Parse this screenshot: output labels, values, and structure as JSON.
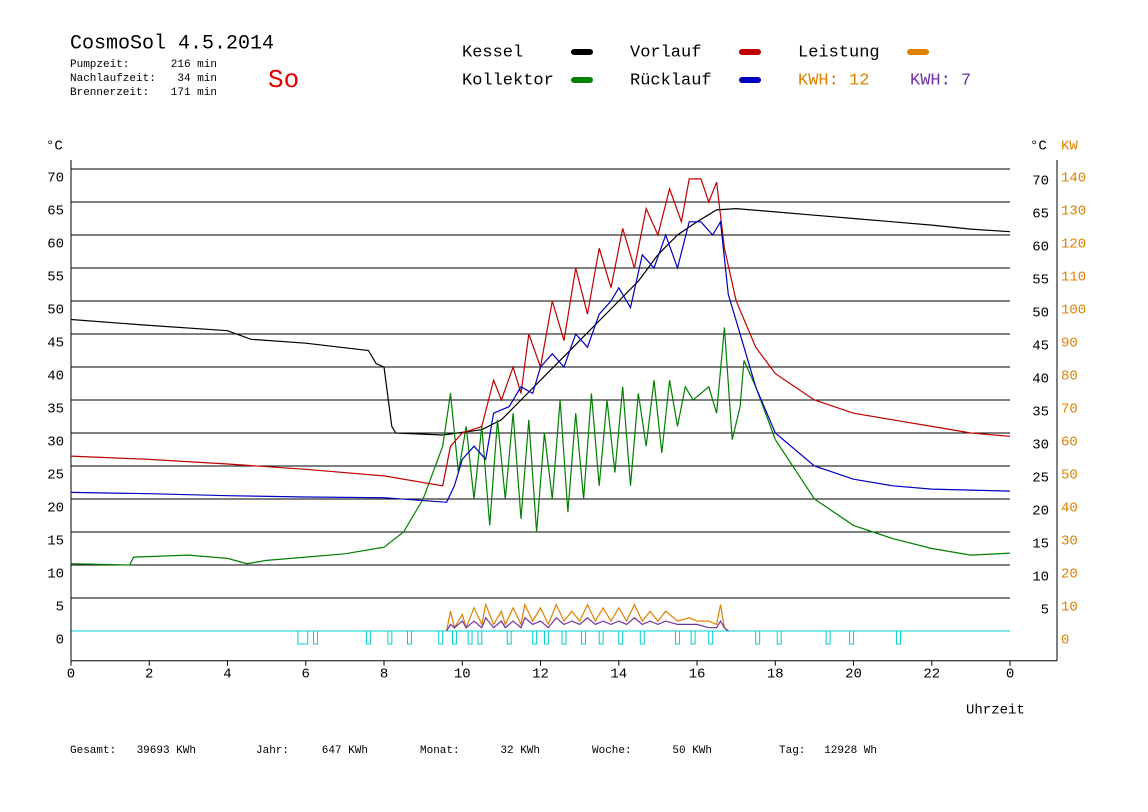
{
  "chart_data": {
    "type": "line",
    "title": "CosmoSol 4.5.2014",
    "weekday": "So",
    "stats": [
      {
        "label": "Pumpzeit:",
        "value": "216 min"
      },
      {
        "label": "Nachlaufzeit:",
        "value": "34 min"
      },
      {
        "label": "Brennerzeit:",
        "value": "171 min"
      }
    ],
    "footer": [
      {
        "label": "Gesamt:",
        "value": "39693 KWh"
      },
      {
        "label": "Jahr:",
        "value": "647 KWh"
      },
      {
        "label": "Monat:",
        "value": "32 KWh"
      },
      {
        "label": "Woche:",
        "value": "50 KWh"
      },
      {
        "label": "Tag:",
        "value": "12928 Wh"
      }
    ],
    "xlabel": "Uhrzeit",
    "ylabel": "°C",
    "y2label": "KW",
    "xlim": [
      0,
      25.2
    ],
    "xticks": [
      0,
      2,
      4,
      6,
      8,
      10,
      12,
      14,
      16,
      18,
      20,
      22,
      {
        "value": 24,
        "label": "0"
      }
    ],
    "ylim": [
      -4.5,
      72
    ],
    "yticks": [
      0,
      5,
      10,
      15,
      20,
      25,
      30,
      35,
      40,
      45,
      50,
      55,
      60,
      65,
      70
    ],
    "y2lim": [
      -9,
      144
    ],
    "y2ticks": [
      0,
      10,
      20,
      30,
      40,
      50,
      60,
      70,
      80,
      90,
      100,
      110,
      120,
      130,
      140
    ],
    "grid": true,
    "series": [
      {
        "name": "Kessel",
        "color": "#000000",
        "x": [
          0,
          2,
          4,
          4.6,
          6,
          7.6,
          7.8,
          8,
          8.2,
          8.3,
          9.5,
          10.5,
          11,
          11.5,
          12,
          12.5,
          13,
          13.5,
          14,
          14.5,
          15,
          15.5,
          16,
          16.5,
          17,
          18,
          19,
          20,
          21,
          22,
          23,
          24
        ],
        "values": [
          47.2,
          46.3,
          45.5,
          44.2,
          43.6,
          42.5,
          40.5,
          40,
          31,
          30,
          29.7,
          30.5,
          32,
          35,
          38,
          41,
          44,
          47,
          50,
          53,
          57,
          60,
          62,
          63.8,
          64,
          63.5,
          63,
          62.5,
          62,
          61.5,
          60.9,
          60.5
        ]
      },
      {
        "name": "Kollektor",
        "color": "#008000",
        "x": [
          0,
          1.5,
          1.6,
          3,
          4,
          4.5,
          5,
          6,
          7,
          8,
          8.5,
          9,
          9.5,
          9.7,
          9.9,
          10.1,
          10.3,
          10.5,
          10.7,
          10.9,
          11.1,
          11.3,
          11.5,
          11.7,
          11.9,
          12.1,
          12.3,
          12.5,
          12.7,
          12.9,
          13.1,
          13.3,
          13.5,
          13.7,
          13.9,
          14.1,
          14.3,
          14.5,
          14.7,
          14.9,
          15.1,
          15.3,
          15.5,
          15.7,
          15.9,
          16.1,
          16.3,
          16.5,
          16.7,
          16.9,
          17.1,
          17.2,
          17.5,
          18,
          19,
          20,
          21,
          22,
          23,
          24
        ],
        "values": [
          10.2,
          10,
          11.2,
          11.5,
          11,
          10.2,
          10.7,
          11.2,
          11.7,
          12.7,
          15,
          20,
          28,
          36,
          24,
          31,
          20,
          31,
          16,
          32,
          20,
          33,
          17,
          32,
          15,
          30,
          20,
          35,
          18,
          33,
          20,
          36,
          22,
          35,
          24,
          37,
          22,
          36,
          28,
          38,
          27,
          38,
          31,
          37,
          35,
          36,
          37,
          33,
          46,
          29,
          34,
          41,
          37,
          29,
          20,
          16,
          14,
          12.5,
          11.5,
          11.8
        ]
      },
      {
        "name": "Vorlauf",
        "color": "#c00000",
        "x": [
          0,
          2,
          4,
          6,
          8,
          9.5,
          9.7,
          10,
          10.5,
          10.8,
          11,
          11.3,
          11.5,
          11.7,
          12,
          12.3,
          12.6,
          12.9,
          13.2,
          13.5,
          13.8,
          14.1,
          14.4,
          14.7,
          15,
          15.3,
          15.6,
          15.8,
          16.1,
          16.3,
          16.5,
          16.7,
          17,
          17.5,
          18,
          19,
          20,
          21,
          22,
          23,
          24
        ],
        "values": [
          26.5,
          26,
          25.3,
          24.5,
          23.5,
          22,
          28,
          30,
          31,
          38,
          35,
          40,
          36,
          45,
          40,
          50,
          44,
          55,
          48,
          58,
          52,
          61,
          55,
          64,
          60,
          67,
          62,
          68.5,
          68.5,
          65,
          68,
          58,
          50,
          43,
          39,
          35,
          33,
          32,
          31,
          30,
          29.5
        ]
      },
      {
        "name": "Rücklauf",
        "color": "#0000c0",
        "x": [
          0,
          2,
          4,
          6,
          8,
          9.6,
          9.8,
          10,
          10.3,
          10.6,
          10.8,
          11.2,
          11.5,
          11.8,
          12,
          12.3,
          12.6,
          12.9,
          13.2,
          13.5,
          13.8,
          14,
          14.3,
          14.6,
          14.9,
          15.2,
          15.5,
          15.8,
          16.1,
          16.4,
          16.6,
          16.8,
          17,
          17.5,
          18,
          19,
          20,
          21,
          22,
          24
        ],
        "values": [
          21,
          20.8,
          20.5,
          20.3,
          20.2,
          19.5,
          22,
          26,
          28,
          26,
          33,
          34,
          37,
          36,
          40,
          42,
          40,
          45,
          43,
          48,
          50,
          52,
          49,
          57,
          55,
          60,
          55,
          62,
          62,
          60,
          62,
          51,
          47,
          37,
          30,
          25,
          23,
          22,
          21.5,
          21.2
        ]
      },
      {
        "name": "Leistung",
        "color": "#e08000",
        "axis": "y2",
        "total": "KWH: 12",
        "x": [
          9.6,
          9.7,
          9.8,
          10,
          10.1,
          10.3,
          10.5,
          10.6,
          10.8,
          11,
          11.1,
          11.3,
          11.5,
          11.6,
          11.8,
          12,
          12.2,
          12.4,
          12.6,
          12.8,
          13,
          13.2,
          13.4,
          13.6,
          13.8,
          14,
          14.2,
          14.4,
          14.6,
          14.8,
          15,
          15.2,
          15.5,
          15.8,
          16,
          16.3,
          16.5,
          16.6,
          16.7,
          16.8
        ],
        "values": [
          0,
          6,
          1,
          5,
          1,
          7,
          2,
          8,
          2,
          6,
          2,
          7,
          2,
          8,
          3,
          7,
          2,
          8,
          3,
          6,
          3,
          8,
          3,
          7,
          3,
          7,
          3,
          8,
          3,
          6,
          3,
          6,
          3,
          4,
          3,
          3,
          2,
          8,
          1,
          0
        ]
      },
      {
        "color": "#7030a0",
        "axis": "y2",
        "total": "KWH: 7",
        "x": [
          9.6,
          9.7,
          9.8,
          10,
          10.1,
          10.3,
          10.5,
          10.6,
          10.8,
          11,
          11.1,
          11.3,
          11.5,
          11.6,
          11.8,
          12,
          12.2,
          12.4,
          12.6,
          12.8,
          13,
          13.2,
          13.4,
          13.6,
          13.8,
          14,
          14.2,
          14.4,
          14.6,
          14.8,
          15,
          15.2,
          15.5,
          15.8,
          16,
          16.3,
          16.5,
          16.6,
          16.7,
          16.8
        ],
        "values": [
          0,
          2,
          1,
          3,
          1,
          3,
          1,
          4,
          1,
          3,
          1,
          3,
          1,
          4,
          2,
          3,
          1,
          4,
          2,
          3,
          2,
          4,
          2,
          3,
          2,
          3,
          2,
          4,
          2,
          3,
          2,
          3,
          2,
          2,
          2,
          1,
          1,
          3,
          1,
          0
        ]
      }
    ],
    "pump_color": "#00d0d0",
    "pump": [
      [
        5.8,
        6.05
      ],
      [
        6.2,
        6.3
      ],
      [
        7.55,
        7.65
      ],
      [
        8.1,
        8.2
      ],
      [
        8.6,
        8.7
      ],
      [
        9.4,
        9.5
      ],
      [
        9.75,
        9.85
      ],
      [
        10.15,
        10.25
      ],
      [
        10.4,
        10.5
      ],
      [
        11.15,
        11.25
      ],
      [
        11.8,
        11.9
      ],
      [
        12.1,
        12.2
      ],
      [
        12.55,
        12.65
      ],
      [
        13.05,
        13.15
      ],
      [
        13.5,
        13.6
      ],
      [
        14.0,
        14.1
      ],
      [
        14.55,
        14.65
      ],
      [
        15.45,
        15.55
      ],
      [
        15.85,
        15.95
      ],
      [
        16.3,
        16.4
      ],
      [
        17.5,
        17.6
      ],
      [
        18.05,
        18.15
      ],
      [
        19.3,
        19.4
      ],
      [
        19.9,
        20.0
      ],
      [
        21.1,
        21.2
      ]
    ]
  }
}
